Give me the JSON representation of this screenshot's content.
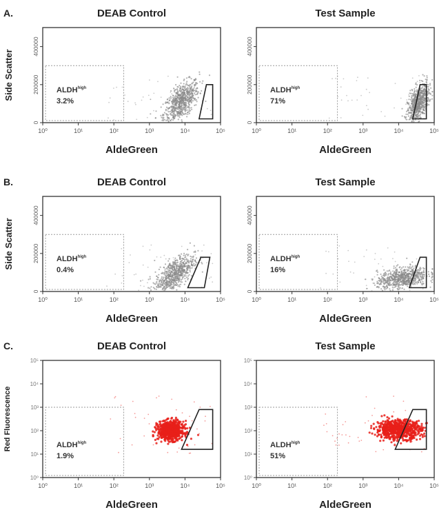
{
  "chart_data": [
    {
      "type": "scatter",
      "panel_label": "A.",
      "title": "DEAB Control",
      "xlabel": "AldeGreen",
      "ylabel": "Side Scatter",
      "x_scale": "log",
      "xlim": [
        1,
        100000
      ],
      "ylim": [
        0,
        500000
      ],
      "x_ticks": [
        "10⁰",
        "10¹",
        "10²",
        "10³",
        "10⁴",
        "10⁵"
      ],
      "y_ticks": [
        "0",
        "200000",
        "400000"
      ],
      "point_color": "#8a8a8a",
      "cluster": {
        "x_center_log": 3.9,
        "x_spread_log": 0.25,
        "y_center": 110000,
        "y_spread": 55000,
        "tilt": 0.6
      },
      "gate_label": "ALDH",
      "gate_label_sup": "high",
      "gate_percent": "3.2%",
      "gate_polygon_data": [
        [
          25000,
          20000
        ],
        [
          60000,
          20000
        ],
        [
          60000,
          200000
        ],
        [
          40000,
          200000
        ]
      ]
    },
    {
      "type": "scatter",
      "panel_label": "",
      "title": "Test Sample",
      "xlabel": "AldeGreen",
      "ylabel": "",
      "x_scale": "log",
      "xlim": [
        1,
        100000
      ],
      "ylim": [
        0,
        500000
      ],
      "x_ticks": [
        "10⁰",
        "10¹",
        "10²",
        "10³",
        "10⁴",
        "10⁵"
      ],
      "y_ticks": [
        "0",
        "200000",
        "400000"
      ],
      "point_color": "#8a8a8a",
      "cluster": {
        "x_center_log": 4.55,
        "x_spread_log": 0.15,
        "y_center": 100000,
        "y_spread": 55000,
        "tilt": 0.5
      },
      "gate_label": "ALDH",
      "gate_label_sup": "high",
      "gate_percent": "71%",
      "gate_polygon_data": [
        [
          25000,
          20000
        ],
        [
          60000,
          20000
        ],
        [
          60000,
          200000
        ],
        [
          40000,
          200000
        ]
      ]
    },
    {
      "type": "scatter",
      "panel_label": "B.",
      "title": "DEAB Control",
      "xlabel": "AldeGreen",
      "ylabel": "Side Scatter",
      "x_scale": "log",
      "xlim": [
        1,
        100000
      ],
      "ylim": [
        0,
        500000
      ],
      "x_ticks": [
        "10⁰",
        "10¹",
        "10²",
        "10³",
        "10⁴",
        "10⁵"
      ],
      "y_ticks": [
        "0",
        "200000",
        "400000"
      ],
      "point_color": "#8a8a8a",
      "cluster": {
        "x_center_log": 3.7,
        "x_spread_log": 0.28,
        "y_center": 90000,
        "y_spread": 50000,
        "tilt": 0.7
      },
      "gate_label": "ALDH",
      "gate_label_sup": "high",
      "gate_percent": "0.4%",
      "gate_polygon_data": [
        [
          12000,
          20000
        ],
        [
          35000,
          20000
        ],
        [
          50000,
          180000
        ],
        [
          28000,
          180000
        ]
      ]
    },
    {
      "type": "scatter",
      "panel_label": "",
      "title": "Test Sample",
      "xlabel": "AldeGreen",
      "ylabel": "",
      "x_scale": "log",
      "xlim": [
        1,
        100000
      ],
      "ylim": [
        0,
        500000
      ],
      "x_ticks": [
        "10⁰",
        "10¹",
        "10²",
        "10³",
        "10⁴",
        "10⁵"
      ],
      "y_ticks": [
        "0",
        "200000",
        "400000"
      ],
      "point_color": "#8a8a8a",
      "cluster": {
        "x_center_log": 4.1,
        "x_spread_log": 0.35,
        "y_center": 70000,
        "y_spread": 35000,
        "tilt": 0.3
      },
      "gate_label": "ALDH",
      "gate_label_sup": "high",
      "gate_percent": "16%",
      "gate_polygon_data": [
        [
          20000,
          20000
        ],
        [
          60000,
          20000
        ],
        [
          60000,
          180000
        ],
        [
          40000,
          180000
        ]
      ]
    },
    {
      "type": "scatter",
      "panel_label": "C.",
      "title": "DEAB Control",
      "xlabel": "AldeGreen",
      "ylabel": "Red Fluorescence",
      "x_scale": "log",
      "y_scale": "log",
      "xlim": [
        1,
        100000
      ],
      "ylim": [
        1,
        100000
      ],
      "x_ticks": [
        "10⁰",
        "10¹",
        "10²",
        "10³",
        "10⁴",
        "10⁵"
      ],
      "y_ticks": [
        "10⁰",
        "10¹",
        "10²",
        "10³",
        "10⁴",
        "10⁵"
      ],
      "point_color": "#e8201a",
      "cluster": {
        "x_center_log": 3.6,
        "x_spread_log": 0.18,
        "y_center_log": 2.0,
        "y_spread_log": 0.2,
        "tilt": 0
      },
      "gate_label": "ALDH",
      "gate_label_sup": "high",
      "gate_percent": "1.9%",
      "gate_polygon_data": [
        [
          8000,
          16
        ],
        [
          60000,
          16
        ],
        [
          60000,
          800
        ],
        [
          25000,
          800
        ]
      ]
    },
    {
      "type": "scatter",
      "panel_label": "",
      "title": "Test Sample",
      "xlabel": "AldeGreen",
      "ylabel": "",
      "x_scale": "log",
      "y_scale": "log",
      "xlim": [
        1,
        100000
      ],
      "ylim": [
        1,
        100000
      ],
      "x_ticks": [
        "10⁰",
        "10¹",
        "10²",
        "10³",
        "10⁴",
        "10⁵"
      ],
      "y_ticks": [
        "10⁰",
        "10¹",
        "10²",
        "10³",
        "10⁴",
        "10⁵"
      ],
      "point_color": "#e8201a",
      "cluster": {
        "x_center_log": 4.0,
        "x_spread_log": 0.32,
        "y_center_log": 2.05,
        "y_spread_log": 0.2,
        "tilt": 0
      },
      "gate_label": "ALDH",
      "gate_label_sup": "high",
      "gate_percent": "51%",
      "gate_polygon_data": [
        [
          8000,
          16
        ],
        [
          60000,
          16
        ],
        [
          60000,
          800
        ],
        [
          25000,
          800
        ]
      ]
    }
  ]
}
